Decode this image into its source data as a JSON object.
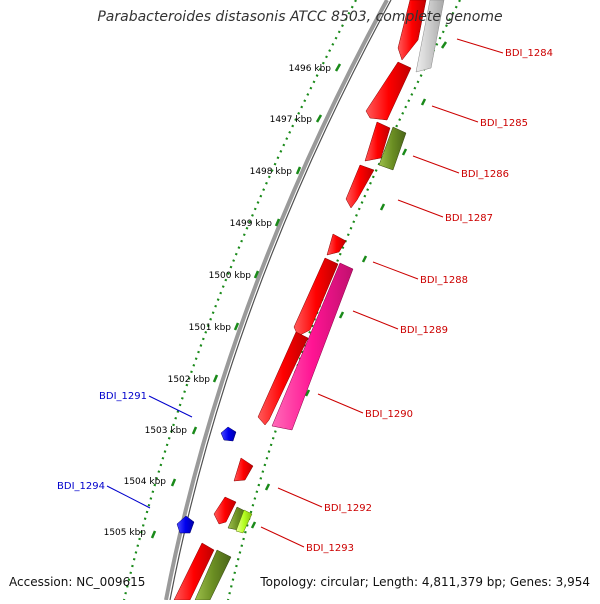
{
  "title": "Parabacteroides distasonis ATCC 8503, complete genome",
  "accession": "Accession: NC_009615",
  "topology": "Topology: circular; Length: 4,811,379 bp; Genes: 3,954",
  "colors": {
    "backbone": "#8a8a8a",
    "tick_green": "#1a8a1a",
    "gene_red": "#ff0000",
    "gene_pink": "#ff1493",
    "gene_olive": "#6b8e23",
    "gene_gray": "#c8c8c8",
    "gene_blue": "#0000ee",
    "gene_yellowgreen": "#b5ff20",
    "label_red": "#cc0000",
    "label_blue": "#0000cc"
  },
  "scale_labels": [
    "1496 kbp",
    "1497 kbp",
    "1498 kbp",
    "1499 kbp",
    "1500 kbp",
    "1501 kbp",
    "1502 kbp",
    "1503 kbp",
    "1504 kbp",
    "1505 kbp"
  ],
  "gene_labels_right": [
    "BDI_1284",
    "BDI_1285",
    "BDI_1286",
    "BDI_1287",
    "BDI_1288",
    "BDI_1289",
    "BDI_1290",
    "BDI_1292",
    "BDI_1293"
  ],
  "gene_labels_left": [
    "BDI_1291",
    "BDI_1294"
  ]
}
